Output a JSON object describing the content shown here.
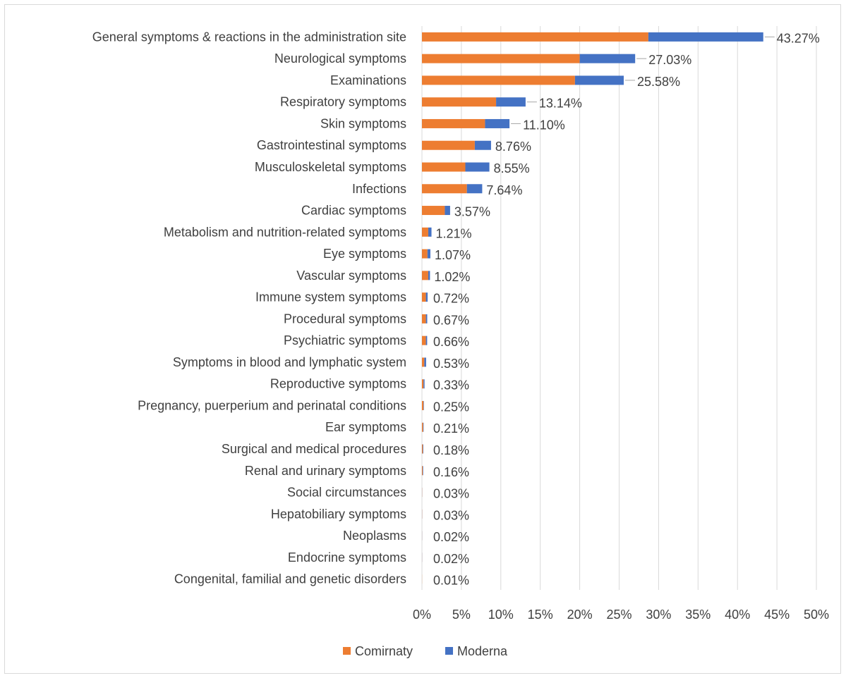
{
  "chart_data": {
    "type": "bar",
    "orientation": "horizontal",
    "stacked": true,
    "title": "",
    "xlabel": "",
    "ylabel": "",
    "xlim": [
      0,
      50
    ],
    "x_tick_labels": [
      "0%",
      "5%",
      "10%",
      "15%",
      "20%",
      "25%",
      "30%",
      "35%",
      "40%",
      "45%",
      "50%"
    ],
    "grid": "vertical",
    "legend_position": "bottom",
    "categories": [
      "General symptoms & reactions in the administration site",
      "Neurological symptoms",
      "Examinations",
      "Respiratory symptoms",
      "Skin symptoms",
      "Gastrointestinal symptoms",
      "Musculoskeletal symptoms",
      "Infections",
      "Cardiac symptoms",
      "Metabolism and nutrition-related symptoms",
      "Eye symptoms",
      "Vascular symptoms",
      "Immune system symptoms",
      "Procedural symptoms",
      "Psychiatric symptoms",
      "Symptoms in blood and lymphatic system",
      "Reproductive symptoms",
      "Pregnancy, puerperium and perinatal conditions",
      "Ear symptoms",
      "Surgical and medical procedures",
      "Renal and urinary symptoms",
      "Social circumstances",
      "Hepatobiliary symptoms",
      "Neoplasms",
      "Endocrine symptoms",
      "Congenital, familial and genetic disorders"
    ],
    "series": [
      {
        "name": "Comirnaty",
        "color": "#ED7D31",
        "values": [
          28.7,
          20.0,
          19.4,
          9.4,
          8.0,
          6.7,
          5.5,
          5.7,
          2.9,
          0.8,
          0.7,
          0.8,
          0.5,
          0.5,
          0.5,
          0.3,
          0.2,
          0.2,
          0.15,
          0.12,
          0.1,
          0.02,
          0.02,
          0.01,
          0.01,
          0.01
        ]
      },
      {
        "name": "Moderna",
        "color": "#4472C4",
        "values": [
          14.57,
          7.03,
          6.18,
          3.74,
          3.1,
          2.06,
          3.05,
          1.94,
          0.67,
          0.41,
          0.37,
          0.22,
          0.22,
          0.17,
          0.16,
          0.23,
          0.13,
          0.05,
          0.06,
          0.06,
          0.06,
          0.01,
          0.01,
          0.01,
          0.01,
          0.0
        ]
      }
    ],
    "data_labels": [
      "43.27%",
      "27.03%",
      "25.58%",
      "13.14%",
      "11.10%",
      "8.76%",
      "8.55%",
      "7.64%",
      "3.57%",
      "1.21%",
      "1.07%",
      "1.02%",
      "0.72%",
      "0.67%",
      "0.66%",
      "0.53%",
      "0.33%",
      "0.25%",
      "0.21%",
      "0.18%",
      "0.16%",
      "0.03%",
      "0.03%",
      "0.02%",
      "0.02%",
      "0.01%"
    ],
    "totals": [
      43.27,
      27.03,
      25.58,
      13.14,
      11.1,
      8.76,
      8.55,
      7.64,
      3.57,
      1.21,
      1.07,
      1.02,
      0.72,
      0.67,
      0.66,
      0.53,
      0.33,
      0.25,
      0.21,
      0.18,
      0.16,
      0.03,
      0.03,
      0.02,
      0.02,
      0.01
    ],
    "label_leader_lines": [
      true,
      true,
      true,
      true,
      true,
      false,
      false,
      false,
      false,
      false,
      false,
      false,
      false,
      false,
      false,
      false,
      false,
      false,
      false,
      false,
      false,
      false,
      false,
      false,
      false,
      false
    ]
  },
  "colors": {
    "grid": "#d9d9d9",
    "text": "#404040",
    "leader": "#a6a6a6"
  }
}
